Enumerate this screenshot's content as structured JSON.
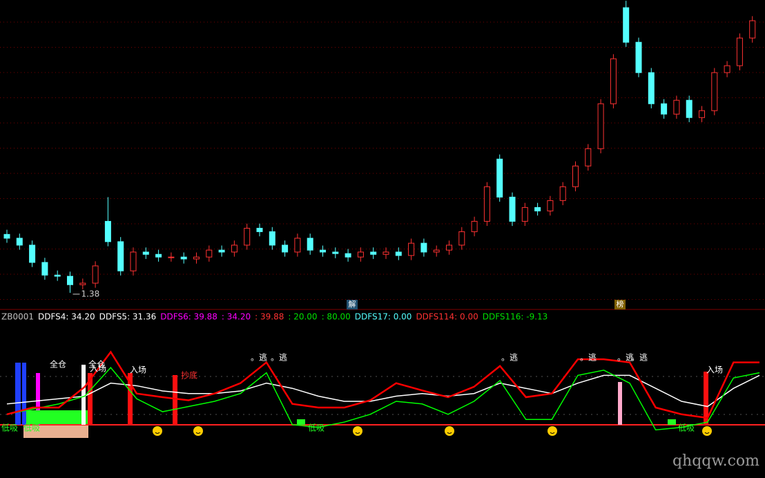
{
  "chart_data": [
    {
      "type": "candlestick",
      "ylim": [
        1,
        9
      ],
      "up_color": "#ff3232",
      "down_color": "#54ffff",
      "open": [
        2.9,
        2.8,
        2.62,
        2.17,
        1.84,
        1.81,
        1.59,
        1.63,
        3.24,
        2.71,
        1.95,
        2.44,
        2.38,
        2.31,
        2.31,
        2.26,
        2.31,
        2.49,
        2.44,
        2.62,
        3.06,
        2.97,
        2.62,
        2.44,
        2.8,
        2.49,
        2.44,
        2.4,
        2.31,
        2.44,
        2.38,
        2.44,
        2.35,
        2.67,
        2.44,
        2.49,
        2.62,
        2.97,
        3.24,
        4.86,
        3.87,
        3.24,
        3.6,
        3.51,
        3.78,
        4.14,
        4.68,
        5.13,
        6.3,
        8.8,
        7.9,
        7.11,
        6.3,
        6.03,
        6.39,
        5.94,
        6.12,
        7.11,
        7.29,
        8.01
      ],
      "close": [
        2.8,
        2.62,
        2.17,
        1.84,
        1.81,
        1.59,
        1.63,
        2.08,
        2.71,
        1.95,
        2.44,
        2.38,
        2.31,
        2.31,
        2.26,
        2.31,
        2.49,
        2.44,
        2.62,
        3.06,
        2.97,
        2.62,
        2.44,
        2.8,
        2.49,
        2.44,
        2.4,
        2.31,
        2.44,
        2.38,
        2.44,
        2.35,
        2.67,
        2.44,
        2.49,
        2.62,
        2.97,
        3.24,
        4.14,
        3.87,
        3.24,
        3.6,
        3.51,
        3.78,
        4.14,
        4.68,
        5.13,
        6.3,
        7.47,
        7.9,
        7.11,
        6.3,
        6.03,
        6.39,
        5.94,
        6.12,
        7.11,
        7.29,
        8.01,
        8.46
      ],
      "high": [
        3.02,
        2.92,
        2.74,
        2.29,
        1.96,
        1.93,
        1.75,
        2.2,
        3.87,
        2.83,
        2.56,
        2.56,
        2.5,
        2.43,
        2.43,
        2.43,
        2.61,
        2.61,
        2.74,
        3.18,
        3.18,
        3.09,
        2.74,
        2.92,
        2.92,
        2.61,
        2.56,
        2.52,
        2.56,
        2.56,
        2.56,
        2.56,
        2.79,
        2.79,
        2.61,
        2.74,
        3.09,
        3.36,
        4.26,
        4.98,
        3.99,
        3.72,
        3.72,
        3.9,
        4.26,
        4.8,
        5.25,
        6.42,
        7.59,
        8.98,
        8.02,
        7.23,
        6.42,
        6.51,
        6.51,
        6.24,
        7.23,
        7.41,
        8.13,
        8.58
      ],
      "low": [
        2.68,
        2.5,
        2.05,
        1.72,
        1.69,
        1.38,
        1.47,
        1.51,
        2.59,
        1.83,
        1.83,
        2.26,
        2.19,
        2.19,
        2.14,
        2.14,
        2.19,
        2.32,
        2.32,
        2.5,
        2.85,
        2.5,
        2.32,
        2.32,
        2.37,
        2.32,
        2.28,
        2.19,
        2.19,
        2.26,
        2.26,
        2.23,
        2.23,
        2.32,
        2.32,
        2.37,
        2.5,
        2.85,
        3.12,
        3.75,
        3.12,
        3.12,
        3.39,
        3.39,
        3.66,
        4.02,
        4.56,
        5.01,
        6.18,
        7.78,
        6.99,
        6.18,
        5.91,
        5.91,
        5.82,
        5.82,
        6.0,
        6.99,
        7.17,
        7.89
      ],
      "annotations": [
        "解",
        "榜"
      ]
    },
    {
      "type": "line",
      "ylim": [
        -100,
        190
      ],
      "legend": [
        {
          "label": "ZB0001",
          "color": "#c0c0c0"
        },
        {
          "label": "DDFS4: 34.20",
          "color": "#ffffff"
        },
        {
          "label": "DDFS5: 31.36",
          "color": "#ffffff"
        },
        {
          "label": "DDFS6: 39.88",
          "color": "#ff00ff"
        },
        {
          "label": ": 34.20",
          "color": "#ff00ff"
        },
        {
          "label": ": 39.88",
          "color": "#ff3232"
        },
        {
          "label": ": 20.00",
          "color": "#00e000"
        },
        {
          "label": ": 80.00",
          "color": "#00e000"
        },
        {
          "label": "DDFS17: 0.00",
          "color": "#54ffff"
        },
        {
          "label": "DDFS114: 0.00",
          "color": "#ff3232"
        },
        {
          "label": "DDFS116: -9.13",
          "color": "#00e000"
        }
      ],
      "series": [
        {
          "color": "#ffffff",
          "values": [
            40,
            45,
            50,
            55,
            80,
            75,
            65,
            60,
            60,
            65,
            80,
            70,
            55,
            45,
            45,
            55,
            60,
            55,
            60,
            80,
            70,
            60,
            80,
            95,
            95,
            70,
            45,
            35,
            70,
            95
          ]
        },
        {
          "color": "#00ff00",
          "values": [
            20,
            30,
            40,
            55,
            110,
            50,
            25,
            35,
            45,
            60,
            100,
            0,
            -5,
            5,
            20,
            45,
            40,
            20,
            45,
            85,
            10,
            10,
            95,
            105,
            80,
            -10,
            -5,
            5,
            90,
            100
          ]
        },
        {
          "color": "#ff0000",
          "values": [
            20,
            33,
            33,
            73,
            140,
            60,
            53,
            47,
            60,
            80,
            120,
            40,
            33,
            33,
            47,
            80,
            66,
            53,
            73,
            113,
            53,
            60,
            126,
            126,
            120,
            33,
            20,
            13,
            120,
            120
          ]
        }
      ],
      "annotations": [
        "低吸",
        "低吸",
        "全仓",
        "全仓",
        "入场",
        "入场",
        "抄底",
        "。逃",
        "。逃",
        "。逃",
        "。逃",
        "。逃",
        "。逃",
        "低吸",
        "低吸",
        "入场"
      ]
    },
    {
      "type": "text",
      "watermark": "qhqqw.com"
    }
  ]
}
